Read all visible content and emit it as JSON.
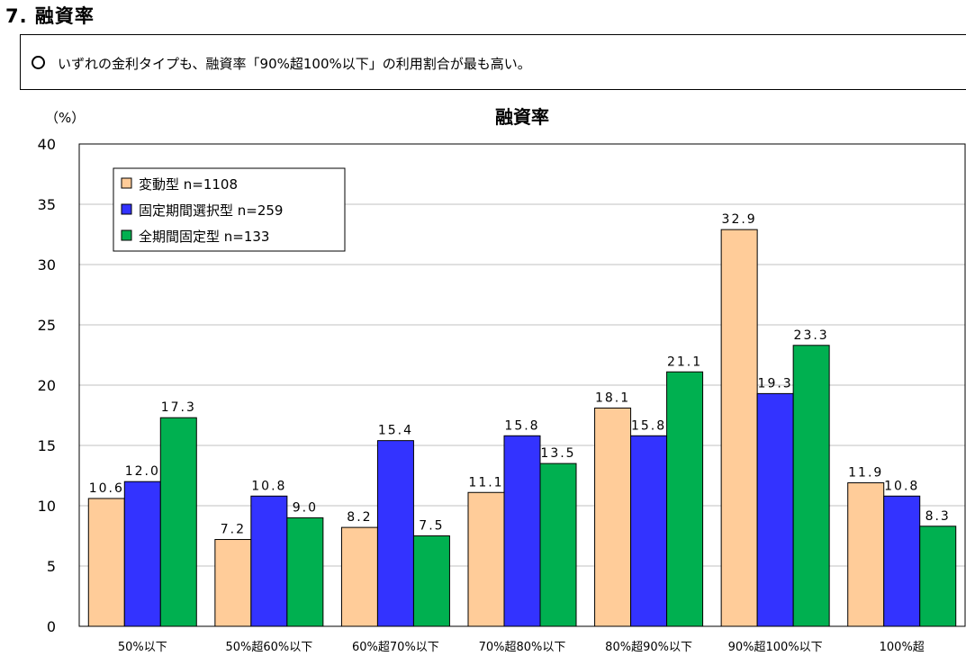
{
  "section": {
    "title": "7. 融資率"
  },
  "summary": {
    "text": "いずれの金利タイプも、融資率「90%超100%以下」の利用割合が最も高い。"
  },
  "colors": {
    "series": [
      "#FFCC99",
      "#3333FF",
      "#00B050"
    ],
    "grid": "#C0C0C0"
  },
  "chart_data": {
    "type": "bar",
    "title": "融資率",
    "ylabel": "（%）",
    "xlabel": "",
    "ylim": [
      0,
      40
    ],
    "yticks": [
      0,
      5,
      10,
      15,
      20,
      25,
      30,
      35,
      40
    ],
    "grid": true,
    "legend_position": "top-left",
    "categories": [
      "50%以下",
      "50%超60%以下",
      "60%超70%以下",
      "70%超80%以下",
      "80%超90%以下",
      "90%超100%以下",
      "100%超"
    ],
    "series": [
      {
        "name": "変動型 n=1108",
        "values": [
          10.6,
          7.2,
          8.2,
          11.1,
          18.1,
          32.9,
          11.9
        ],
        "labels": [
          "10.6",
          "7.2",
          "8.2",
          "11.1",
          "18.1",
          "32.9",
          "11.9"
        ]
      },
      {
        "name": "固定期間選択型 n=259",
        "values": [
          12.0,
          10.8,
          15.4,
          15.8,
          15.8,
          19.3,
          10.8
        ],
        "labels": [
          "12.0",
          "10.8",
          "15.4",
          "15.8",
          "15.8",
          "19.3",
          "10.8"
        ]
      },
      {
        "name": "全期間固定型 n=133",
        "values": [
          17.3,
          9.0,
          7.5,
          13.5,
          21.1,
          23.3,
          8.3
        ],
        "labels": [
          "17.3",
          "9.0",
          "7.5",
          "13.5",
          "21.1",
          "23.3",
          "8.3"
        ]
      }
    ]
  }
}
